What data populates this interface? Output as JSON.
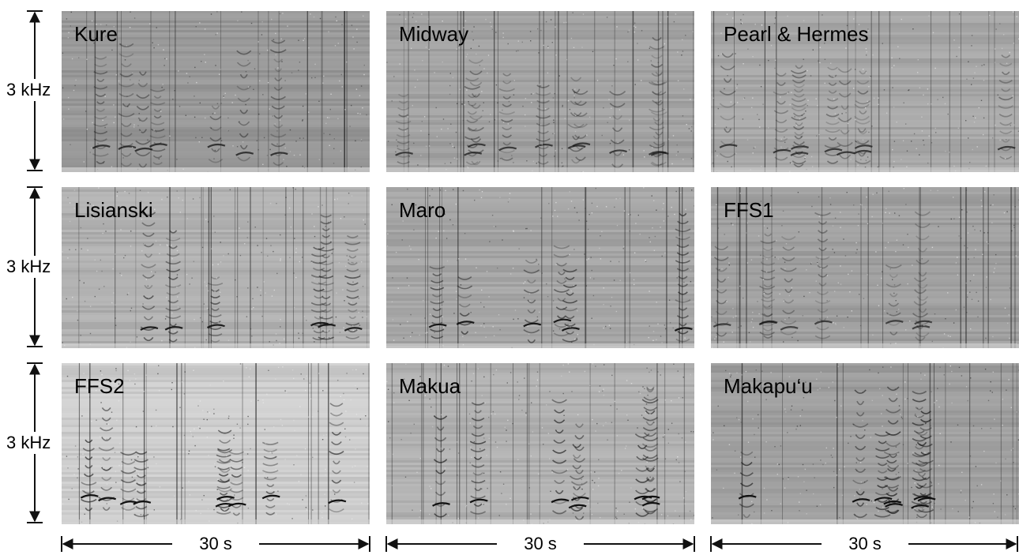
{
  "y_axis_label": "3 kHz",
  "x_axis_label": "30 s",
  "panels": [
    {
      "label": "Kure",
      "tone": "#9a9a9a",
      "darkness": 0.55
    },
    {
      "label": "Midway",
      "tone": "#a4a4a4",
      "darkness": 0.5
    },
    {
      "label": "Pearl & Hermes",
      "tone": "#a9a9a9",
      "darkness": 0.5
    },
    {
      "label": "Lisianski",
      "tone": "#b3b3b3",
      "darkness": 0.7
    },
    {
      "label": "Maro",
      "tone": "#a8a8a8",
      "darkness": 0.75
    },
    {
      "label": "FFS1",
      "tone": "#a2a2a2",
      "darkness": 0.45
    },
    {
      "label": "FFS2",
      "tone": "#d2d2d2",
      "darkness": 0.8
    },
    {
      "label": "Makua",
      "tone": "#b4b4b4",
      "darkness": 0.8
    },
    {
      "label": "Makapu‘u",
      "tone": "#a0a0a0",
      "darkness": 0.85
    }
  ],
  "colors": {
    "ink": "#111111",
    "background": "#ffffff"
  }
}
